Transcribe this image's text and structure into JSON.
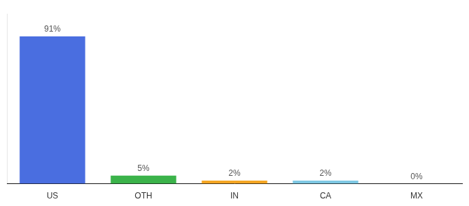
{
  "chart_data": {
    "type": "bar",
    "categories": [
      "US",
      "OTH",
      "IN",
      "CA",
      "MX"
    ],
    "values": [
      91,
      5,
      2,
      2,
      0
    ],
    "value_labels": [
      "91%",
      "5%",
      "2%",
      "2%",
      "0%"
    ],
    "colors": [
      "#4a6ee0",
      "#3bb34a",
      "#f5a623",
      "#7ec8e3",
      "#7ec8e3"
    ],
    "ylim": [
      0,
      105
    ],
    "grid": false,
    "tick_labels": "x",
    "data_labels": true
  }
}
